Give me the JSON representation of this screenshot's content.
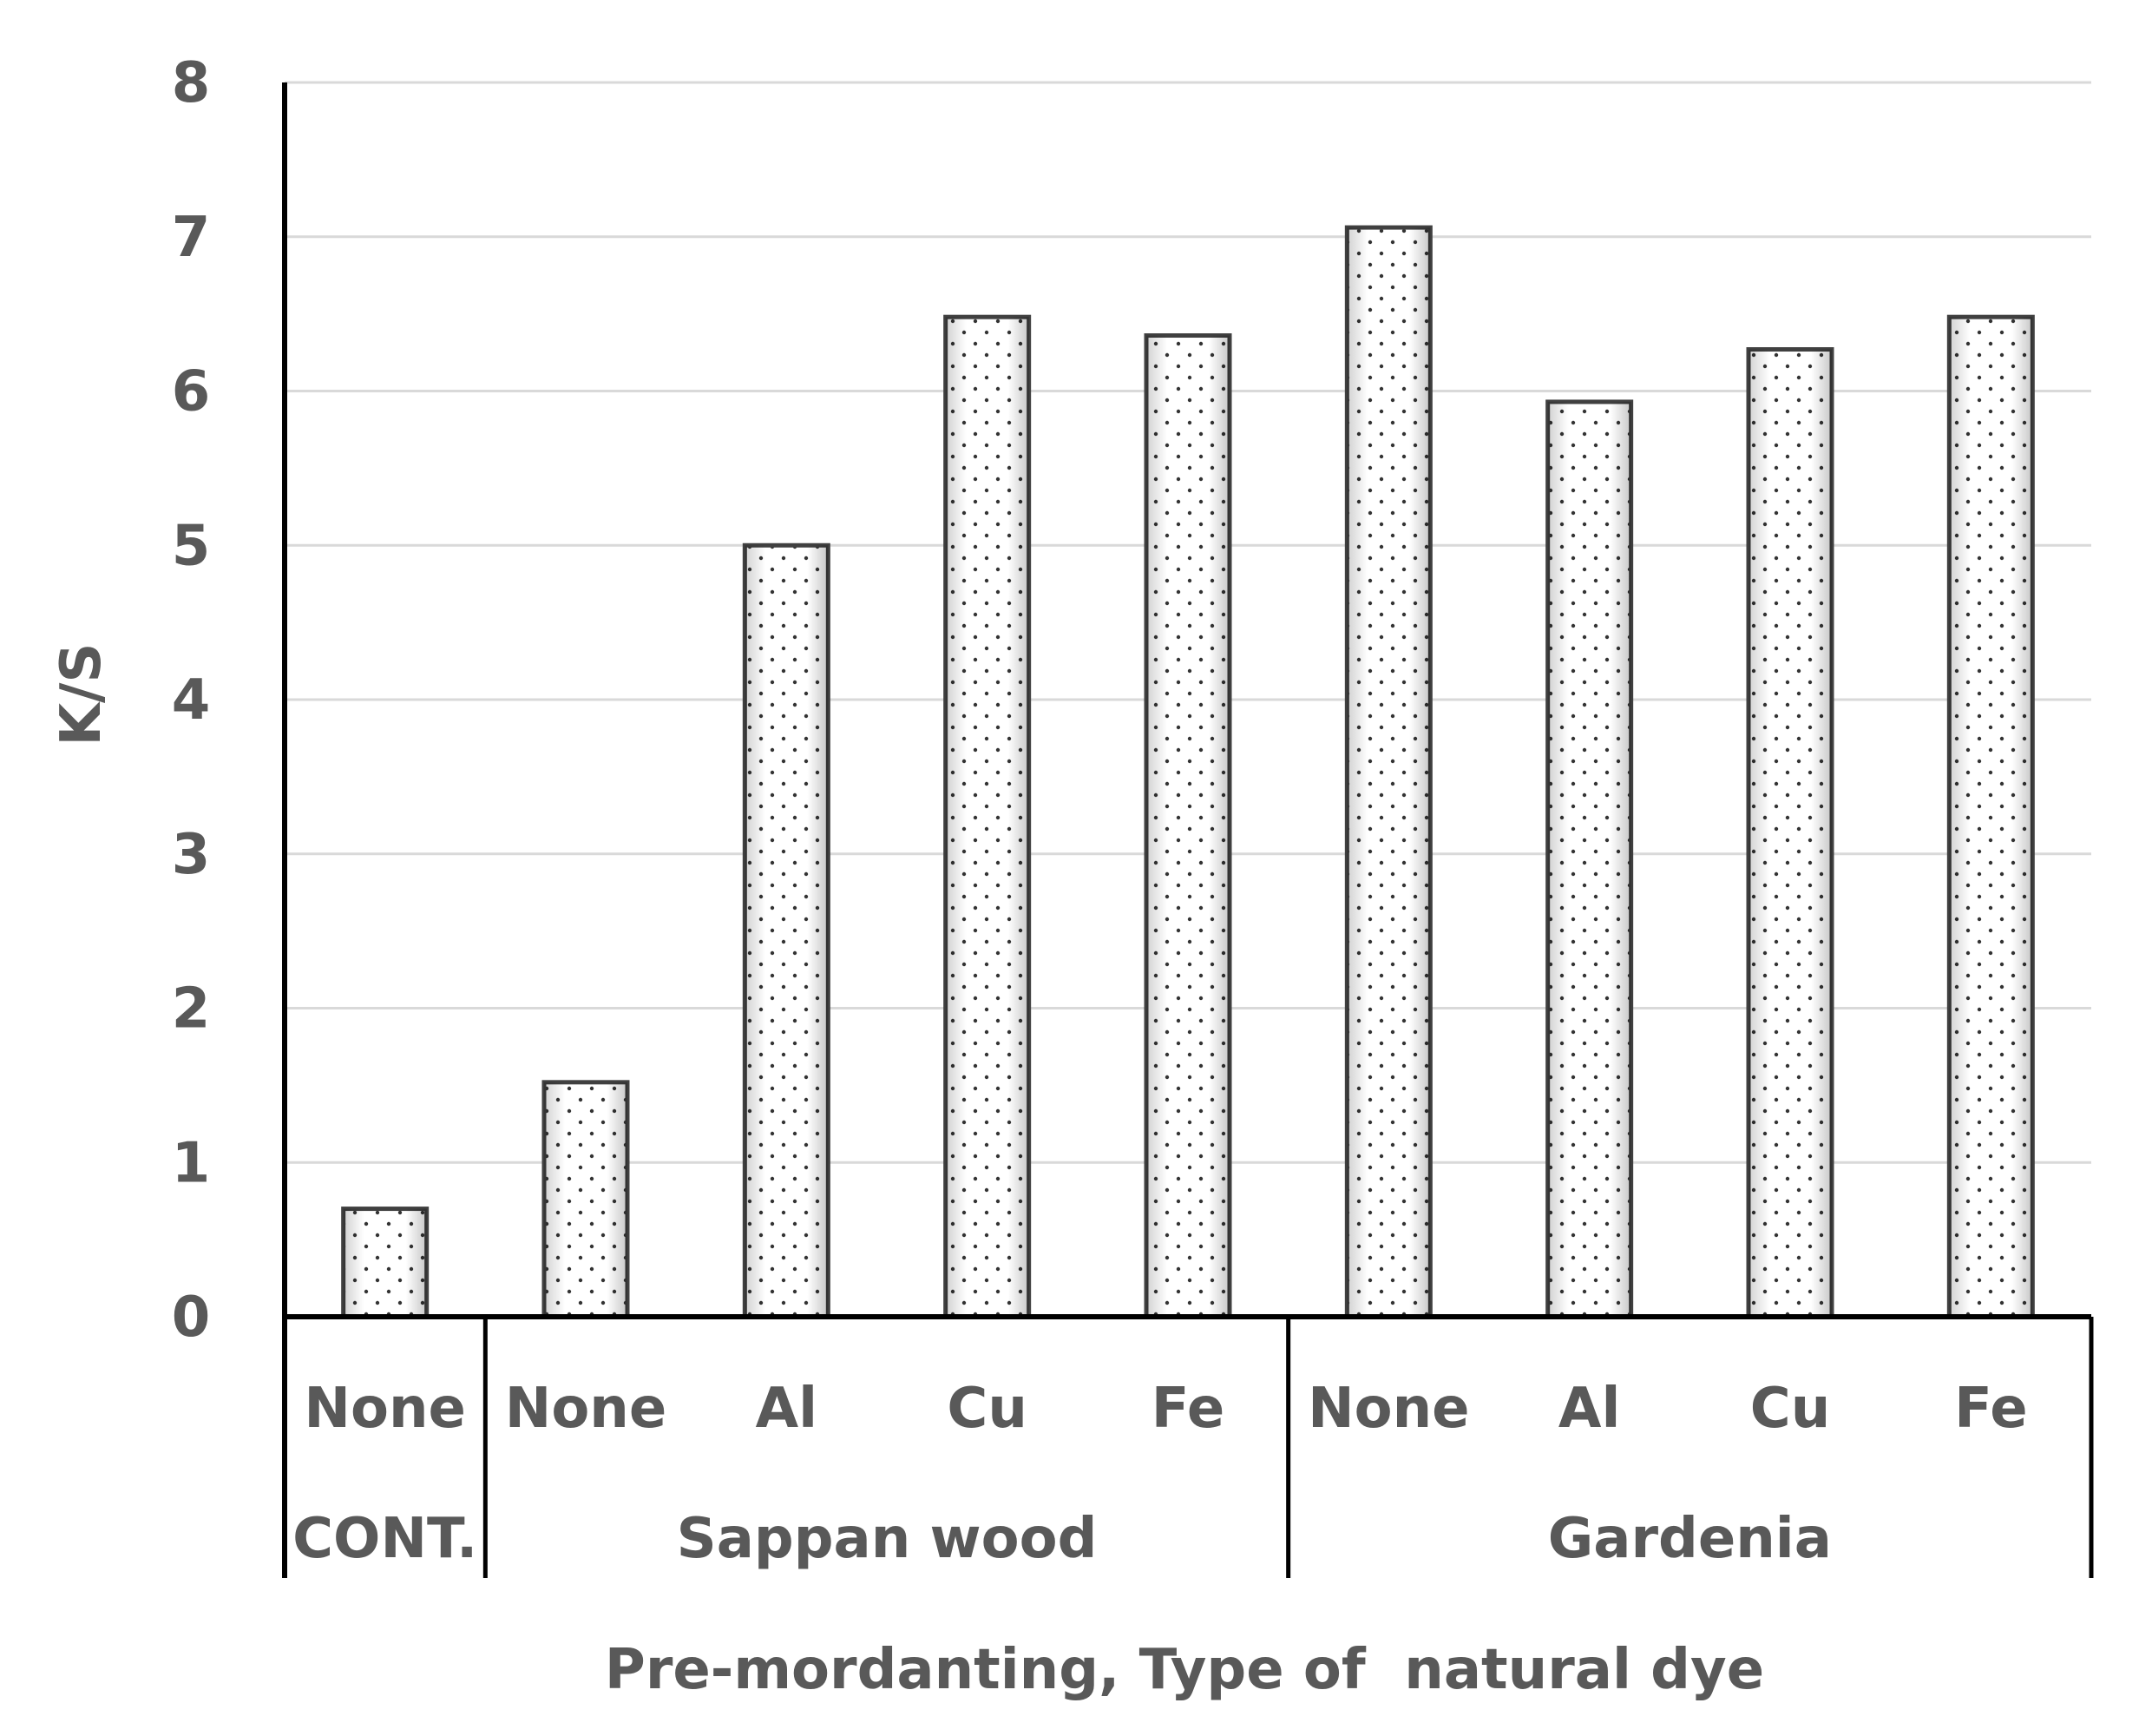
{
  "chart_data": {
    "type": "bar",
    "title": "",
    "ylabel": "K/S",
    "xlabel": "Pre-mordanting, Type of  natural dye",
    "ylim": [
      0,
      8
    ],
    "yticks": [
      "0",
      "1",
      "2",
      "3",
      "4",
      "5",
      "6",
      "7",
      "8"
    ],
    "grid": true,
    "categories": [
      "None",
      "None",
      "Al",
      "Cu",
      "Fe",
      "None",
      "Al",
      "Cu",
      "Fe"
    ],
    "values": [
      0.7,
      1.52,
      5.0,
      6.48,
      6.36,
      7.06,
      5.93,
      6.27,
      6.48
    ],
    "groups": [
      {
        "label": "CONT.",
        "count": 1
      },
      {
        "label": "Sappan wood",
        "count": 4
      },
      {
        "label": "Gardenia",
        "count": 4
      }
    ],
    "colors": {
      "bar_fill": "#ffffff",
      "bar_stroke": "#404040",
      "dot": "#333333",
      "grid": "#d9d9d9",
      "axis": "#000000",
      "text": "#595959"
    }
  }
}
